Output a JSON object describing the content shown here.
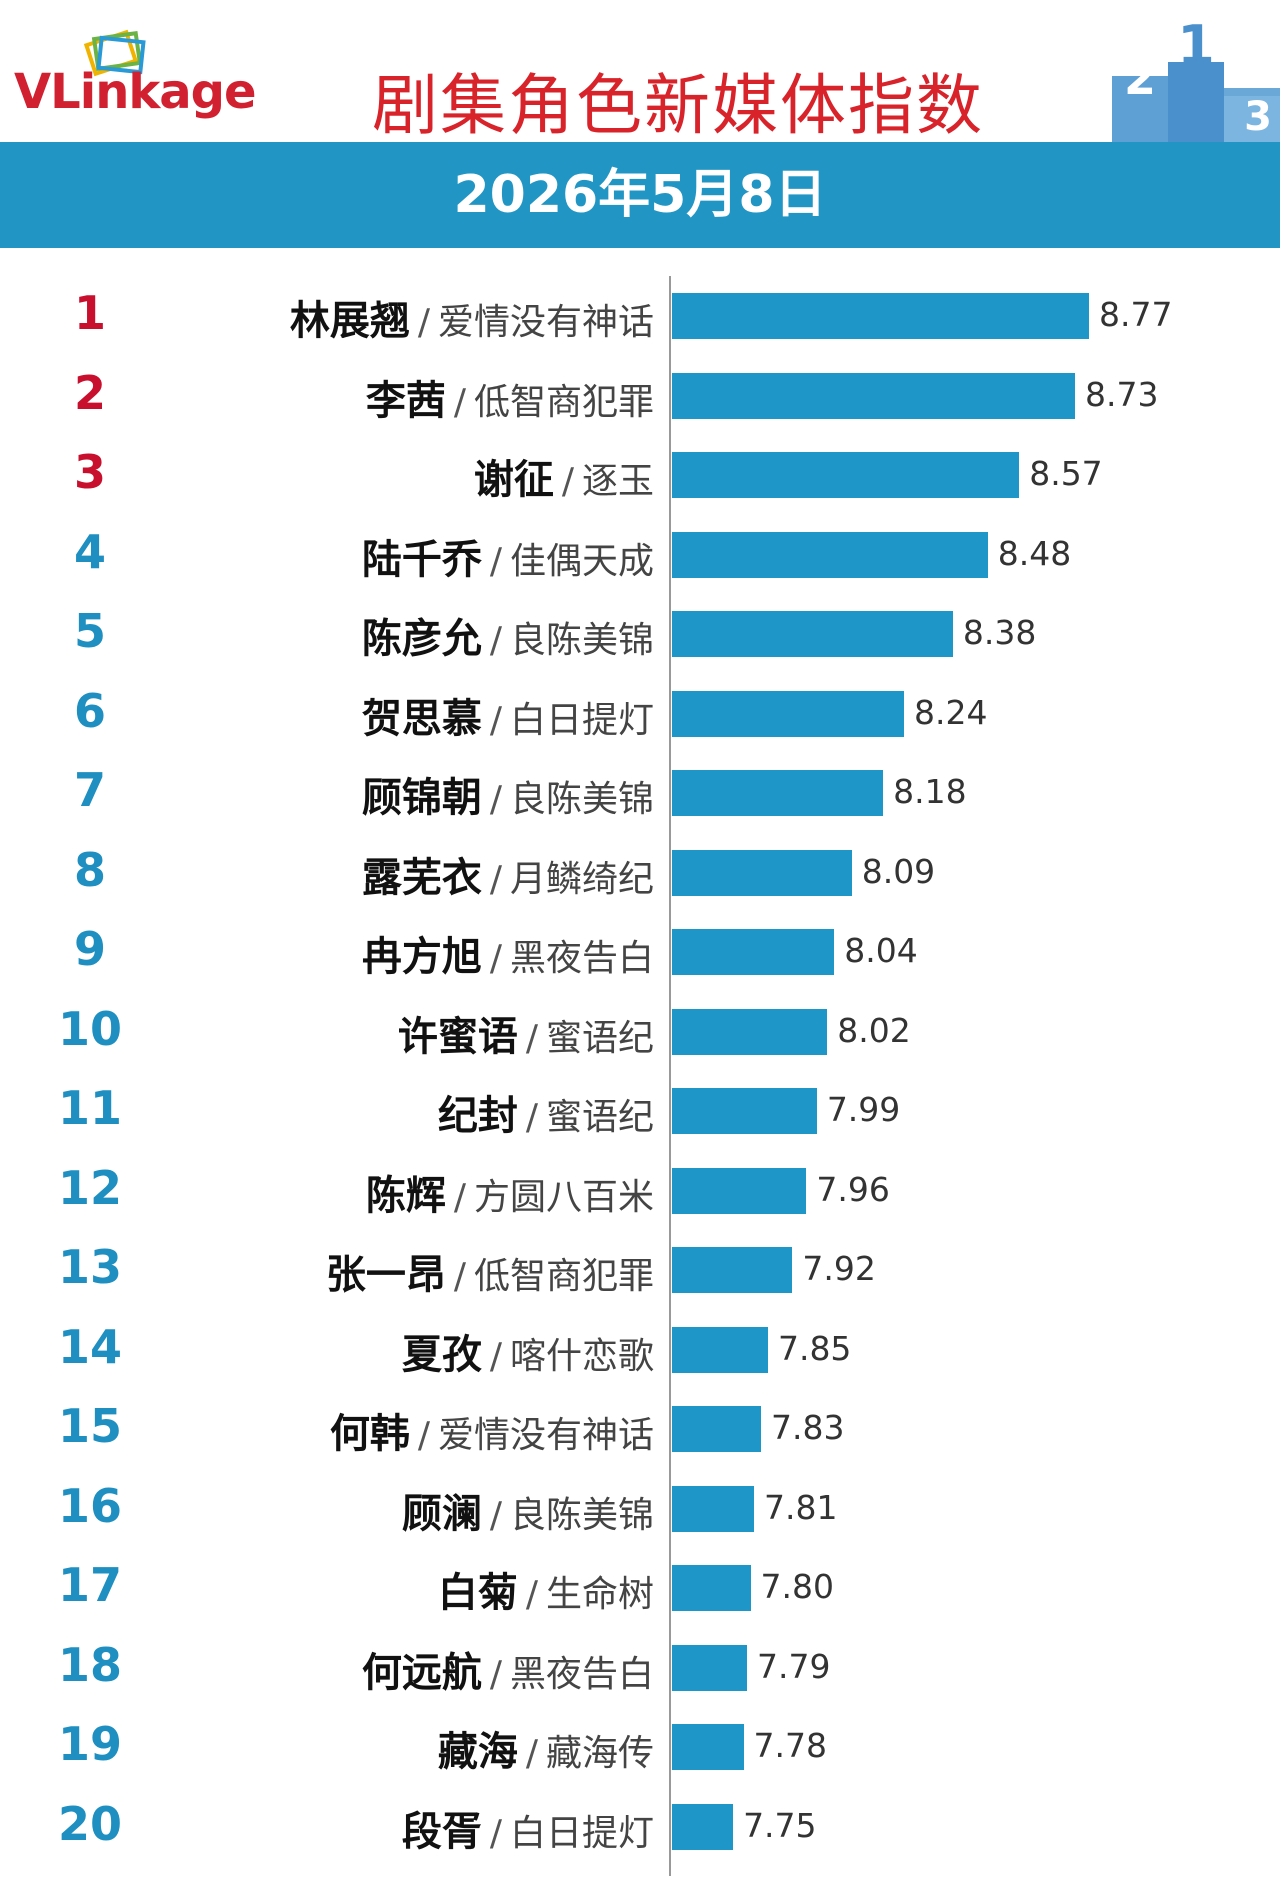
{
  "header": {
    "logo_text": "VLinkage",
    "title": "剧集角色新媒体指数",
    "podium": [
      "2",
      "1",
      "3"
    ]
  },
  "date": "2026年5月8日",
  "colors": {
    "accent": "#2196c4",
    "bar": "#1e96c8",
    "title_red": "#d8232a",
    "rank_top": "#c8102e",
    "rank_other": "#1e8fc0"
  },
  "chart_data": {
    "type": "bar",
    "orientation": "horizontal",
    "categories": [
      "林展翘",
      "李茜",
      "谢征",
      "陆千乔",
      "陈彦允",
      "贺思慕",
      "顾锦朝",
      "露芜衣",
      "冉方旭",
      "许蜜语",
      "纪封",
      "陈辉",
      "张一昂",
      "夏孜",
      "何韩",
      "顾澜",
      "白菊",
      "何远航",
      "藏海",
      "段胥"
    ],
    "ranks": [
      "1",
      "2",
      "3",
      "4",
      "5",
      "6",
      "7",
      "8",
      "9",
      "10",
      "11",
      "12",
      "13",
      "14",
      "15",
      "16",
      "17",
      "18",
      "19",
      "20"
    ],
    "dramas": [
      "爱情没有神话",
      "低智商犯罪",
      "逐玉",
      "佳偶天成",
      "良陈美锦",
      "白日提灯",
      "良陈美锦",
      "月鳞绮纪",
      "黑夜告白",
      "蜜语纪",
      "蜜语纪",
      "方圆八百米",
      "低智商犯罪",
      "喀什恋歌",
      "爱情没有神话",
      "良陈美锦",
      "生命树",
      "黑夜告白",
      "藏海传",
      "白日提灯"
    ],
    "separator": "/",
    "values": [
      8.77,
      8.73,
      8.57,
      8.48,
      8.38,
      8.24,
      8.18,
      8.09,
      8.04,
      8.02,
      7.99,
      7.96,
      7.92,
      7.85,
      7.83,
      7.81,
      7.8,
      7.79,
      7.78,
      7.75
    ],
    "value_labels": [
      "8.77",
      "8.73",
      "8.57",
      "8.48",
      "8.38",
      "8.24",
      "8.18",
      "8.09",
      "8.04",
      "8.02",
      "7.99",
      "7.96",
      "7.92",
      "7.85",
      "7.83",
      "7.81",
      "7.80",
      "7.79",
      "7.78",
      "7.75"
    ],
    "title": "剧集角色新媒体指数",
    "xlabel": "",
    "ylabel": "",
    "grid": false,
    "legend": "none"
  }
}
